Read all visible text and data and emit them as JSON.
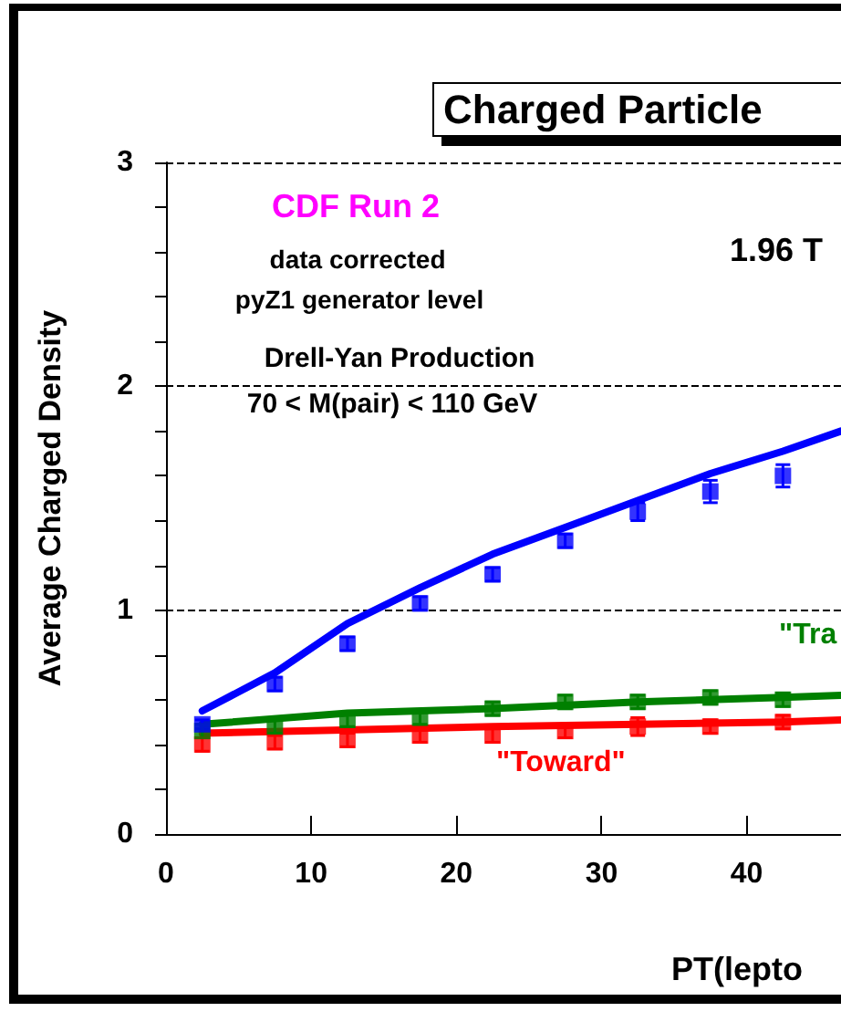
{
  "chart_data": {
    "type": "scatter",
    "title": "Charged Particle",
    "xlabel": "PT(lepto",
    "ylabel": "Average Charged Density",
    "annotations": [
      "CDF Run 2",
      "data corrected",
      "pyZ1 generator level",
      "Drell-Yan Production",
      "70 < M(pair) < 110 GeV",
      "1.96 T"
    ],
    "x": [
      2.5,
      7.5,
      12.5,
      17.5,
      22.5,
      27.5,
      32.5,
      37.5,
      42.5
    ],
    "series": [
      {
        "marker": "square",
        "color": "#0000ff",
        "values": [
          0.49,
          0.67,
          0.85,
          1.03,
          1.16,
          1.31,
          1.44,
          1.53,
          1.6
        ],
        "errors": [
          0.02,
          0.03,
          0.03,
          0.03,
          0.03,
          0.03,
          0.04,
          0.05,
          0.05
        ]
      },
      {
        "type": "line",
        "marker": "none",
        "color": "#0000ff",
        "x": [
          2.5,
          7.5,
          12.5,
          17.5,
          22.5,
          27.5,
          32.5,
          37.5,
          42.5,
          46.5
        ],
        "values": [
          0.55,
          0.72,
          0.94,
          1.1,
          1.25,
          1.37,
          1.49,
          1.61,
          1.71,
          1.8
        ]
      },
      {
        "marker": "square",
        "name": "\"Tra",
        "color": "#008000",
        "values": [
          0.46,
          0.48,
          0.51,
          0.52,
          0.56,
          0.59,
          0.59,
          0.61,
          0.6
        ],
        "errors": [
          0.03,
          0.03,
          0.03,
          0.03,
          0.03,
          0.03,
          0.03,
          0.03,
          0.03
        ]
      },
      {
        "type": "line",
        "marker": "none",
        "color": "#008000",
        "x": [
          2.5,
          12.5,
          22.5,
          32.5,
          42.5,
          46.5
        ],
        "values": [
          0.49,
          0.54,
          0.56,
          0.59,
          0.61,
          0.62
        ]
      },
      {
        "marker": "square",
        "name": "\"Toward\"",
        "color": "#ff0000",
        "values": [
          0.4,
          0.41,
          0.42,
          0.44,
          0.44,
          0.46,
          0.48,
          0.48,
          0.5
        ],
        "errors": [
          0.03,
          0.03,
          0.03,
          0.03,
          0.03,
          0.03,
          0.04,
          0.03,
          0.03
        ]
      },
      {
        "type": "line",
        "marker": "none",
        "color": "#ff0000",
        "x": [
          2.5,
          22.5,
          42.5,
          46.5
        ],
        "values": [
          0.45,
          0.48,
          0.5,
          0.51
        ]
      }
    ],
    "xlim": [
      0,
      46.5
    ],
    "xticks": [
      0,
      10,
      20,
      30,
      40
    ],
    "ylim": [
      0,
      3
    ],
    "yticks": [
      0,
      {
        "value": 0.2,
        "label": null
      },
      {
        "value": 0.4,
        "label": null
      },
      {
        "value": 0.6,
        "label": null
      },
      {
        "value": 0.8,
        "label": null
      },
      1,
      {
        "value": 1.2,
        "label": null
      },
      {
        "value": 1.4,
        "label": null
      },
      {
        "value": 1.6,
        "label": null
      },
      {
        "value": 1.8,
        "label": null
      },
      2,
      {
        "value": 2.2,
        "label": null
      },
      {
        "value": 2.4,
        "label": null
      },
      {
        "value": 2.6,
        "label": null
      },
      {
        "value": 2.8,
        "label": null
      },
      3
    ],
    "grid": "y"
  }
}
